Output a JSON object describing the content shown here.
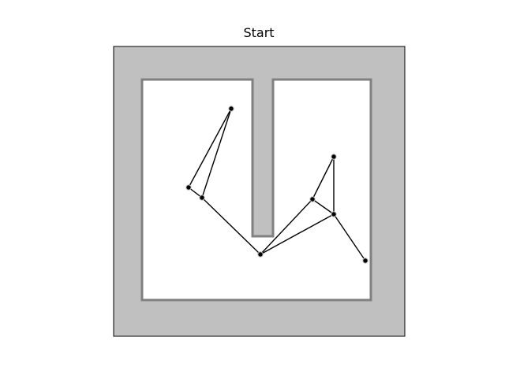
{
  "title": "Start",
  "colors": {
    "background": "#ffffff",
    "wall_fill": "#c0c0c0",
    "wall_edge": "#808080",
    "frame": "#000000",
    "free_space": "#ffffff",
    "edge": "#000000",
    "node": "#000000",
    "node_outline": "#bfbfbf"
  },
  "nodes": [
    {
      "id": "n1",
      "label": ""
    },
    {
      "id": "n2",
      "label": ""
    },
    {
      "id": "n3",
      "label": ""
    },
    {
      "id": "n4",
      "label": ""
    },
    {
      "id": "n5",
      "label": ""
    },
    {
      "id": "n6",
      "label": ""
    },
    {
      "id": "n7",
      "label": ""
    },
    {
      "id": "n8",
      "label": ""
    }
  ],
  "edges": [
    [
      "n1",
      "n2"
    ],
    [
      "n1",
      "n3"
    ],
    [
      "n2",
      "n3"
    ],
    [
      "n3",
      "n4"
    ],
    [
      "n4",
      "n5"
    ],
    [
      "n4",
      "n7"
    ],
    [
      "n5",
      "n6"
    ],
    [
      "n5",
      "n7"
    ],
    [
      "n6",
      "n7"
    ],
    [
      "n7",
      "n8"
    ]
  ]
}
